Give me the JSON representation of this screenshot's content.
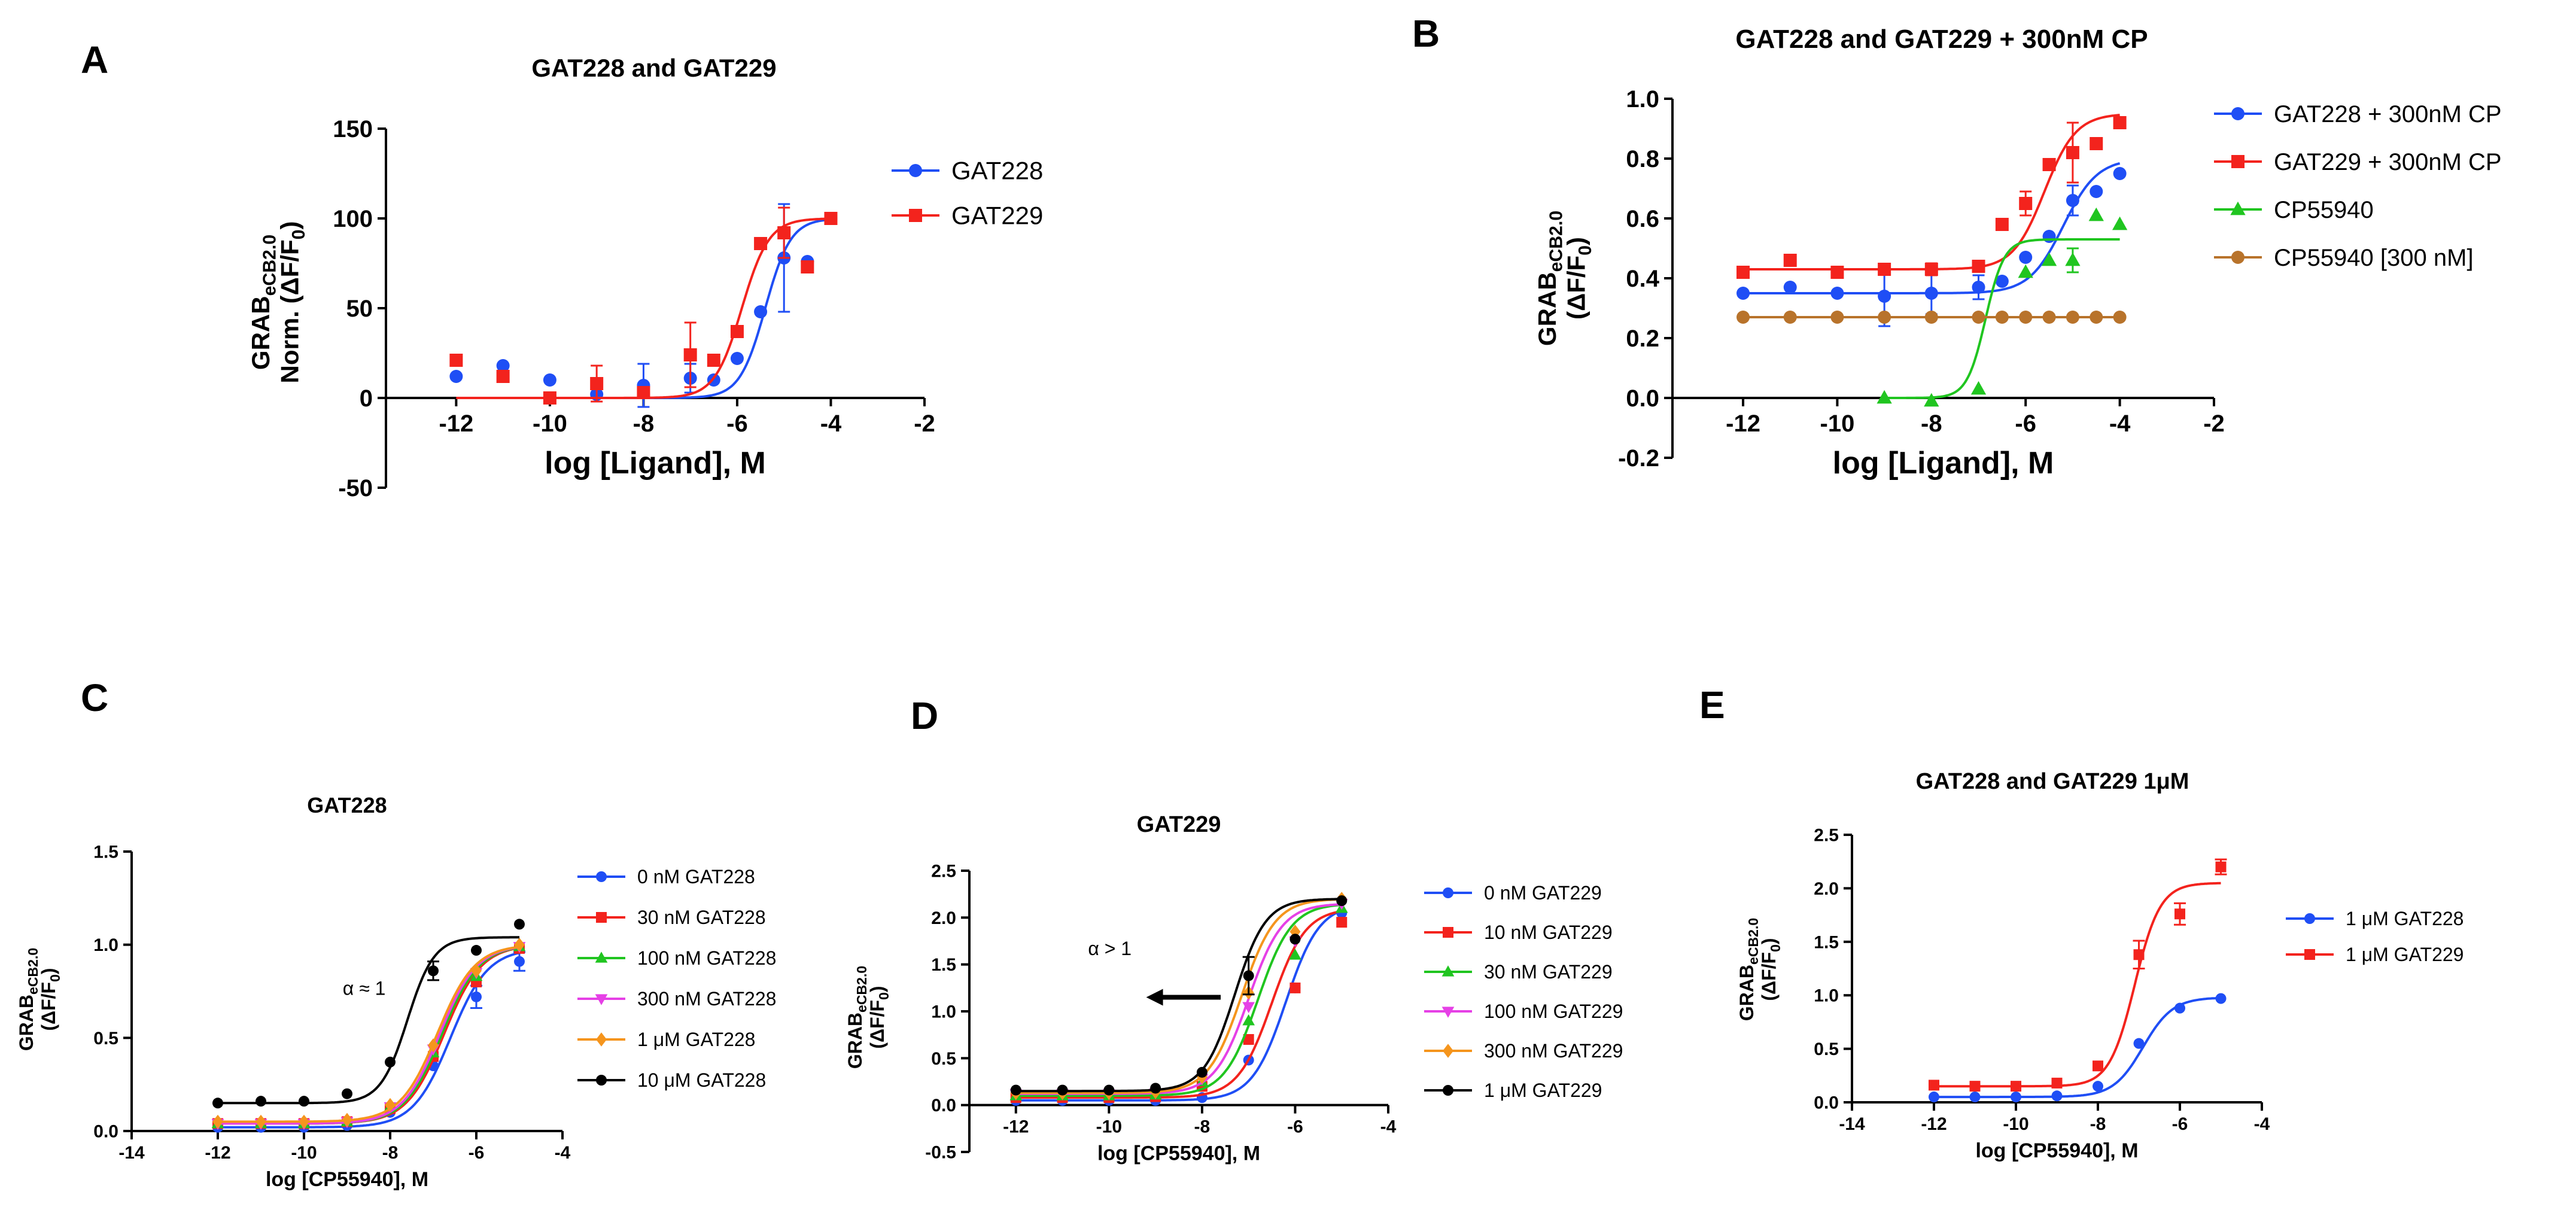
{
  "figure": {
    "panel_letters": [
      "A",
      "B",
      "C",
      "D",
      "E"
    ],
    "markers_note": "series markers: circle, square, triangle-up, triangle-down, diamond"
  },
  "chart_data": [
    {
      "type": "scatter",
      "panel": "A",
      "title": "GAT228 and GAT229",
      "ylabel_main": "GRAB",
      "ylabel_sub": "eCB2.0",
      "ylabel_line2": "Norm. (ΔF/F",
      "ylabel_line2_sub": "0",
      "ylabel_line2_end": ")",
      "xlabel": "log [Ligand], M",
      "xlim": [
        -13.5,
        -2
      ],
      "ylim": [
        -50,
        150
      ],
      "xticks": [
        -12,
        -10,
        -8,
        -6,
        -4,
        -2
      ],
      "yticks": [
        -50,
        0,
        50,
        100,
        150
      ],
      "x_axis_at": 0,
      "series": [
        {
          "name": "GAT228",
          "color": "#1f4ef5",
          "marker": "circle",
          "x": [
            -12,
            -11,
            -10,
            -9,
            -8,
            -7,
            -6.5,
            -6,
            -5.5,
            -5,
            -4.5,
            -4
          ],
          "y": [
            12,
            18,
            10,
            2,
            7,
            11,
            10,
            22,
            48,
            78,
            76,
            100
          ],
          "err": [
            0,
            0,
            0,
            0,
            12,
            8,
            0,
            0,
            0,
            30,
            0,
            0
          ],
          "fit": {
            "bottom": 0,
            "top": 100,
            "logec50": -5.4,
            "hill": 1.6
          }
        },
        {
          "name": "GAT229",
          "color": "#f3231d",
          "marker": "square",
          "x": [
            -12,
            -11,
            -10,
            -9,
            -8,
            -7,
            -6.5,
            -6,
            -5.5,
            -5,
            -4.5,
            -4
          ],
          "y": [
            21,
            12,
            0,
            8,
            3,
            24,
            21,
            37,
            86,
            92,
            73,
            100
          ],
          "err": [
            0,
            0,
            0,
            10,
            0,
            18,
            0,
            0,
            0,
            14,
            0,
            0
          ],
          "fit": {
            "bottom": 0,
            "top": 100,
            "logec50": -5.9,
            "hill": 1.5
          }
        }
      ]
    },
    {
      "type": "scatter",
      "panel": "B",
      "title": "GAT228 and GAT229 + 300nM CP",
      "ylabel_main": "GRAB",
      "ylabel_sub": "eCB2.0",
      "ylabel_line2": "(ΔF/F",
      "ylabel_line2_sub": "0",
      "ylabel_line2_end": ")",
      "xlabel": "log [Ligand], M",
      "xlim": [
        -13.5,
        -2
      ],
      "ylim": [
        -0.2,
        1.0
      ],
      "xticks": [
        -12,
        -10,
        -8,
        -6,
        -4,
        -2
      ],
      "yticks": [
        -0.2,
        0.0,
        0.2,
        0.4,
        0.6,
        0.8,
        1.0
      ],
      "ytick_labels": [
        "-0.2",
        "0.0",
        "0.2",
        "0.4",
        "0.6",
        "0.8",
        "1.0"
      ],
      "x_axis_at": 0,
      "series": [
        {
          "name": "GAT228 + 300nM CP",
          "color": "#1f4ef5",
          "marker": "circle",
          "x": [
            -12,
            -11,
            -10,
            -9,
            -8,
            -7,
            -6.5,
            -6,
            -5.5,
            -5,
            -4.5,
            -4
          ],
          "y": [
            0.35,
            0.37,
            0.35,
            0.34,
            0.35,
            0.37,
            0.39,
            0.47,
            0.54,
            0.66,
            0.69,
            0.75
          ],
          "err": [
            0,
            0,
            0,
            0.1,
            0.07,
            0.04,
            0,
            0,
            0,
            0.05,
            0,
            0
          ],
          "fit": {
            "bottom": 0.35,
            "top": 0.8,
            "logec50": -5.2,
            "hill": 1.2
          }
        },
        {
          "name": "GAT229 + 300nM CP",
          "color": "#f3231d",
          "marker": "square",
          "x": [
            -12,
            -11,
            -10,
            -9,
            -8,
            -7,
            -6.5,
            -6,
            -5.5,
            -5,
            -4.5,
            -4
          ],
          "y": [
            0.42,
            0.46,
            0.42,
            0.43,
            0.43,
            0.44,
            0.58,
            0.65,
            0.78,
            0.82,
            0.85,
            0.92
          ],
          "err": [
            0,
            0,
            0,
            0,
            0.02,
            0,
            0,
            0.04,
            0,
            0.1,
            0,
            0
          ],
          "fit": {
            "bottom": 0.43,
            "top": 0.95,
            "logec50": -5.6,
            "hill": 1.3
          }
        },
        {
          "name": "CP55940",
          "color": "#20c520",
          "marker": "triangle-up",
          "x": [
            -9,
            -8,
            -7,
            -6,
            -5.5,
            -5,
            -4.5,
            -4
          ],
          "y": [
            0.0,
            -0.01,
            0.03,
            0.42,
            0.46,
            0.46,
            0.61,
            0.58
          ],
          "err": [
            0,
            0,
            0,
            0,
            0,
            0.04,
            0,
            0
          ],
          "fit": {
            "bottom": 0.0,
            "top": 0.53,
            "logec50": -6.85,
            "hill": 2.2
          }
        },
        {
          "name": "CP55940 [300 nM]",
          "color": "#b8732b",
          "marker": "circle",
          "x": [
            -12,
            -11,
            -10,
            -9,
            -8,
            -7,
            -6.5,
            -6,
            -5.5,
            -5,
            -4.5,
            -4
          ],
          "y": [
            0.27,
            0.27,
            0.27,
            0.27,
            0.27,
            0.27,
            0.27,
            0.27,
            0.27,
            0.27,
            0.27,
            0.27
          ],
          "err": [
            0,
            0,
            0,
            0,
            0,
            0,
            0,
            0,
            0,
            0,
            0,
            0
          ],
          "fit": {
            "bottom": 0.27,
            "top": 0.27,
            "logec50": -6,
            "hill": 1
          }
        }
      ]
    },
    {
      "type": "scatter",
      "panel": "C",
      "title": "GAT228",
      "ylabel_main": "GRAB",
      "ylabel_sub": "eCB2.0",
      "ylabel_line2": "(ΔF/F",
      "ylabel_line2_sub": "0",
      "ylabel_line2_end": ")",
      "xlabel": "log [CP55940], M",
      "xlim": [
        -14,
        -4
      ],
      "ylim": [
        0,
        1.5
      ],
      "xticks": [
        -14,
        -12,
        -10,
        -8,
        -6,
        -4
      ],
      "yticks": [
        0,
        0.5,
        1.0,
        1.5
      ],
      "ytick_labels": [
        "0.0",
        "0.5",
        "1.0",
        "1.5"
      ],
      "x_axis_at": 0,
      "annotation": "α ≈ 1",
      "annotation_at": [
        -9.1,
        0.73
      ],
      "series": [
        {
          "name": "0 nM GAT228",
          "color": "#1f4ef5",
          "marker": "circle",
          "x": [
            -12,
            -11,
            -10,
            -9,
            -8,
            -7,
            -6,
            -5
          ],
          "y": [
            0.02,
            0.02,
            0.02,
            0.03,
            0.1,
            0.35,
            0.72,
            0.91
          ],
          "err": [
            0,
            0,
            0,
            0,
            0,
            0,
            0.06,
            0.05
          ],
          "fit": {
            "bottom": 0.02,
            "top": 0.98,
            "logec50": -6.6,
            "hill": 1
          }
        },
        {
          "name": "30 nM GAT228",
          "color": "#f3231d",
          "marker": "square",
          "x": [
            -12,
            -11,
            -10,
            -9,
            -8,
            -7,
            -6,
            -5
          ],
          "y": [
            0.04,
            0.04,
            0.04,
            0.05,
            0.12,
            0.4,
            0.8,
            0.98
          ],
          "err": [
            0,
            0,
            0,
            0,
            0,
            0,
            0,
            0
          ],
          "fit": {
            "bottom": 0.04,
            "top": 1.0,
            "logec50": -6.75,
            "hill": 1
          }
        },
        {
          "name": "100 nM GAT228",
          "color": "#20c520",
          "marker": "triangle-up",
          "x": [
            -12,
            -11,
            -10,
            -9,
            -8,
            -7,
            -6,
            -5
          ],
          "y": [
            0.04,
            0.04,
            0.04,
            0.05,
            0.13,
            0.42,
            0.83,
            0.99
          ],
          "err": [
            0,
            0,
            0,
            0,
            0,
            0,
            0,
            0
          ],
          "fit": {
            "bottom": 0.04,
            "top": 1.0,
            "logec50": -6.8,
            "hill": 1
          }
        },
        {
          "name": "300 nM GAT228",
          "color": "#e640e6",
          "marker": "triangle-down",
          "x": [
            -12,
            -11,
            -10,
            -9,
            -8,
            -7,
            -6,
            -5
          ],
          "y": [
            0.04,
            0.04,
            0.04,
            0.05,
            0.13,
            0.44,
            0.85,
            0.99
          ],
          "err": [
            0,
            0,
            0,
            0,
            0,
            0,
            0,
            0
          ],
          "fit": {
            "bottom": 0.04,
            "top": 1.0,
            "logec50": -6.85,
            "hill": 1
          }
        },
        {
          "name": "1 μM GAT228",
          "color": "#f5951d",
          "marker": "diamond",
          "x": [
            -12,
            -11,
            -10,
            -9,
            -8,
            -7,
            -6,
            -5
          ],
          "y": [
            0.05,
            0.05,
            0.05,
            0.06,
            0.14,
            0.46,
            0.86,
            1.0
          ],
          "err": [
            0,
            0,
            0,
            0,
            0,
            0,
            0,
            0
          ],
          "fit": {
            "bottom": 0.05,
            "top": 1.0,
            "logec50": -6.9,
            "hill": 1
          }
        },
        {
          "name": "10 μM GAT228",
          "color": "#000000",
          "marker": "circle",
          "x": [
            -12,
            -11,
            -10,
            -9,
            -8,
            -7,
            -6,
            -5
          ],
          "y": [
            0.15,
            0.16,
            0.16,
            0.2,
            0.37,
            0.86,
            0.97,
            1.11
          ],
          "err": [
            0,
            0,
            0,
            0,
            0,
            0.05,
            0,
            0
          ],
          "fit": {
            "bottom": 0.15,
            "top": 1.04,
            "logec50": -7.6,
            "hill": 1.4
          }
        }
      ]
    },
    {
      "type": "scatter",
      "panel": "D",
      "title": "GAT229",
      "ylabel_main": "GRAB",
      "ylabel_sub": "eCB2.0",
      "ylabel_line2": "(ΔF/F",
      "ylabel_line2_sub": "0",
      "ylabel_line2_end": ")",
      "xlabel": "log [CP55940], M",
      "xlim": [
        -13,
        -4
      ],
      "ylim": [
        -0.5,
        2.5
      ],
      "xticks": [
        -12,
        -10,
        -8,
        -6,
        -4
      ],
      "yticks": [
        -0.5,
        0,
        0.5,
        1.0,
        1.5,
        2.0,
        2.5
      ],
      "ytick_labels": [
        "-0.5",
        "0.0",
        "0.5",
        "1.0",
        "1.5",
        "2.0",
        "2.5"
      ],
      "x_axis_at": 0,
      "annotation": "α > 1",
      "annotation_at": [
        -10.45,
        1.6
      ],
      "arrow": {
        "from": [
          -7.6,
          1.15
        ],
        "to": [
          -9.2,
          1.15
        ]
      },
      "series": [
        {
          "name": "0 nM GAT229",
          "color": "#1f4ef5",
          "marker": "circle",
          "x": [
            -12,
            -11,
            -10,
            -9,
            -8,
            -7,
            -6,
            -5
          ],
          "y": [
            0.05,
            0.05,
            0.05,
            0.05,
            0.08,
            0.48,
            1.25,
            2.05
          ],
          "err": [
            0,
            0,
            0,
            0,
            0,
            0,
            0,
            0
          ],
          "fit": {
            "bottom": 0.05,
            "top": 2.15,
            "logec50": -6.2,
            "hill": 1.2
          }
        },
        {
          "name": "10 nM GAT229",
          "color": "#f3231d",
          "marker": "square",
          "x": [
            -12,
            -11,
            -10,
            -9,
            -8,
            -7,
            -6,
            -5
          ],
          "y": [
            0.08,
            0.08,
            0.08,
            0.09,
            0.2,
            0.7,
            1.25,
            1.95
          ],
          "err": [
            0,
            0,
            0,
            0,
            0,
            0,
            0,
            0
          ],
          "fit": {
            "bottom": 0.08,
            "top": 2.1,
            "logec50": -6.5,
            "hill": 1.2
          }
        },
        {
          "name": "30 nM GAT229",
          "color": "#20c520",
          "marker": "triangle-up",
          "x": [
            -12,
            -11,
            -10,
            -9,
            -8,
            -7,
            -6,
            -5
          ],
          "y": [
            0.1,
            0.1,
            0.1,
            0.11,
            0.25,
            0.9,
            1.6,
            2.1
          ],
          "err": [
            0,
            0,
            0,
            0,
            0,
            0,
            0,
            0
          ],
          "fit": {
            "bottom": 0.1,
            "top": 2.15,
            "logec50": -6.8,
            "hill": 1.2
          }
        },
        {
          "name": "100 nM GAT229",
          "color": "#e640e6",
          "marker": "triangle-down",
          "x": [
            -12,
            -11,
            -10,
            -9,
            -8,
            -7,
            -6,
            -5
          ],
          "y": [
            0.12,
            0.12,
            0.12,
            0.13,
            0.28,
            1.05,
            1.75,
            2.15
          ],
          "err": [
            0,
            0,
            0,
            0,
            0,
            0,
            0,
            0
          ],
          "fit": {
            "bottom": 0.12,
            "top": 2.15,
            "logec50": -7.0,
            "hill": 1.2
          }
        },
        {
          "name": "300 nM GAT229",
          "color": "#f5951d",
          "marker": "diamond",
          "x": [
            -12,
            -11,
            -10,
            -9,
            -8,
            -7,
            -6,
            -5
          ],
          "y": [
            0.13,
            0.13,
            0.13,
            0.14,
            0.3,
            1.2,
            1.85,
            2.2
          ],
          "err": [
            0,
            0,
            0,
            0,
            0,
            0,
            0,
            0
          ],
          "fit": {
            "bottom": 0.13,
            "top": 2.2,
            "logec50": -7.15,
            "hill": 1.2
          }
        },
        {
          "name": "1 μM GAT229",
          "color": "#000000",
          "marker": "circle",
          "x": [
            -12,
            -11,
            -10,
            -9,
            -8,
            -7,
            -6,
            -5
          ],
          "y": [
            0.16,
            0.16,
            0.16,
            0.18,
            0.35,
            1.38,
            1.77,
            2.18
          ],
          "err": [
            0,
            0,
            0,
            0,
            0,
            0.2,
            0,
            0
          ],
          "fit": {
            "bottom": 0.15,
            "top": 2.2,
            "logec50": -7.3,
            "hill": 1.3
          }
        }
      ]
    },
    {
      "type": "scatter",
      "panel": "E",
      "title": "GAT228 and GAT229 1μM",
      "ylabel_main": "GRAB",
      "ylabel_sub": "eCB2.0",
      "ylabel_line2": "(ΔF/F",
      "ylabel_line2_sub": "0",
      "ylabel_line2_end": ")",
      "xlabel": "log [CP55940], M",
      "xlim": [
        -14,
        -4
      ],
      "ylim": [
        0,
        2.5
      ],
      "xticks": [
        -14,
        -12,
        -10,
        -8,
        -6,
        -4
      ],
      "yticks": [
        0,
        0.5,
        1.0,
        1.5,
        2.0,
        2.5
      ],
      "ytick_labels": [
        "0.0",
        "0.5",
        "1.0",
        "1.5",
        "2.0",
        "2.5"
      ],
      "x_axis_at": 0,
      "series": [
        {
          "name": "1 μM GAT228",
          "color": "#1f4ef5",
          "marker": "circle",
          "x": [
            -12,
            -11,
            -10,
            -9,
            -8,
            -7,
            -6,
            -5
          ],
          "y": [
            0.05,
            0.05,
            0.05,
            0.06,
            0.15,
            0.55,
            0.88,
            0.97
          ],
          "err": [
            0,
            0,
            0,
            0,
            0,
            0,
            0,
            0
          ],
          "fit": {
            "bottom": 0.05,
            "top": 0.98,
            "logec50": -6.9,
            "hill": 1.2
          }
        },
        {
          "name": "1 μM GAT229",
          "color": "#f3231d",
          "marker": "square",
          "x": [
            -12,
            -11,
            -10,
            -9,
            -8,
            -7,
            -6,
            -5
          ],
          "y": [
            0.16,
            0.15,
            0.15,
            0.18,
            0.34,
            1.38,
            1.76,
            2.2
          ],
          "err": [
            0,
            0,
            0,
            0,
            0,
            0.13,
            0.1,
            0.07
          ],
          "fit": {
            "bottom": 0.15,
            "top": 2.05,
            "logec50": -7.1,
            "hill": 1.4
          }
        }
      ]
    }
  ]
}
